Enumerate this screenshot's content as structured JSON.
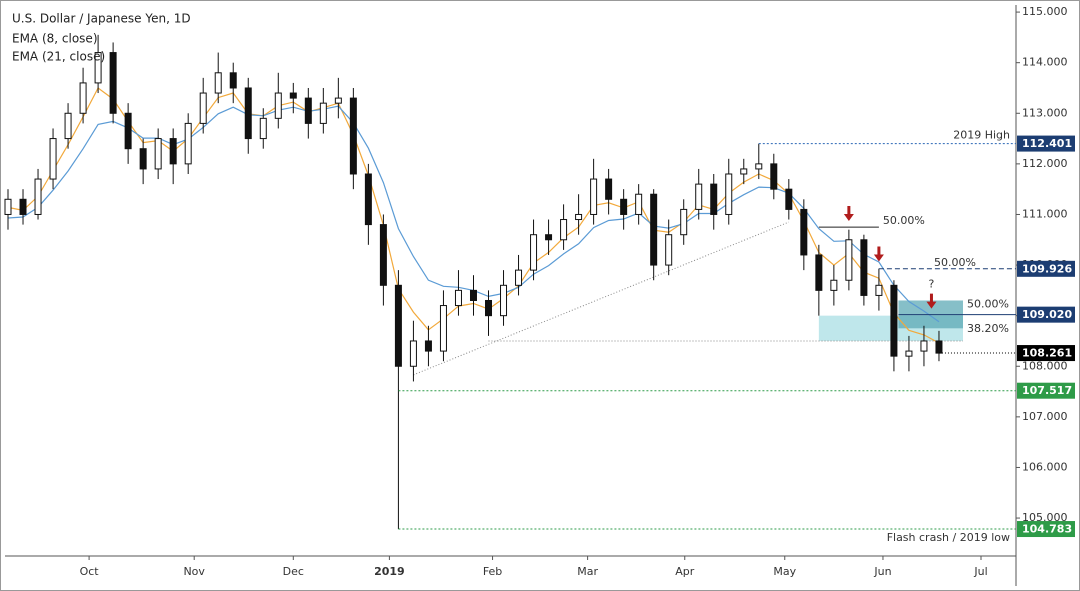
{
  "chart_data": {
    "type": "candlestick",
    "title": "U.S. Dollar / Japanese Yen, 1D",
    "indicators": [
      "EMA (8, close)",
      "EMA (21, close)"
    ],
    "xlim": [
      -0.2,
      67.13
    ],
    "ylim": [
      104.25,
      115.14
    ],
    "xticks": [
      {
        "value": 5.4,
        "label": "Oct"
      },
      {
        "value": 12.4,
        "label": "Nov"
      },
      {
        "value": 19,
        "label": "Dec"
      },
      {
        "value": 25.4,
        "label": "2019"
      },
      {
        "value": 32.27,
        "label": "Feb"
      },
      {
        "value": 38.6,
        "label": "Mar"
      },
      {
        "value": 45.07,
        "label": "Apr"
      },
      {
        "value": 51.73,
        "label": "May"
      },
      {
        "value": 58.27,
        "label": "Jun"
      },
      {
        "value": 64.8,
        "label": "Jul"
      }
    ],
    "yticks": [
      {
        "value": 105,
        "label": "105.000"
      },
      {
        "value": 106,
        "label": "106.000"
      },
      {
        "value": 107,
        "label": "107.000"
      },
      {
        "value": 108,
        "label": "108.000"
      },
      {
        "value": 109,
        "label": "109.000"
      },
      {
        "value": 110,
        "label": "110.000"
      },
      {
        "value": 111,
        "label": "111.000"
      },
      {
        "value": 112,
        "label": "112.000"
      },
      {
        "value": 113,
        "label": "113.000"
      },
      {
        "value": 114,
        "label": "114.000"
      },
      {
        "value": 115,
        "label": "115.000"
      }
    ],
    "open": [
      111.0,
      111.3,
      111.0,
      111.7,
      112.5,
      113.0,
      113.6,
      114.2,
      113.0,
      112.3,
      111.9,
      112.5,
      112.0,
      112.8,
      113.4,
      113.8,
      113.5,
      112.5,
      112.9,
      113.4,
      113.3,
      112.8,
      113.2,
      113.3,
      111.8,
      110.8,
      109.6,
      108.0,
      108.5,
      108.3,
      109.2,
      109.5,
      109.3,
      109.0,
      109.6,
      109.9,
      110.6,
      110.5,
      110.9,
      111.0,
      111.7,
      111.3,
      111.0,
      111.4,
      110.0,
      110.6,
      111.1,
      111.6,
      111.0,
      111.8,
      111.9,
      112.0,
      111.5,
      111.1,
      110.2,
      109.5,
      109.7,
      110.5,
      109.4,
      109.6,
      108.2,
      108.3,
      108.5
    ],
    "high": [
      111.5,
      111.5,
      111.9,
      112.7,
      113.2,
      113.9,
      114.55,
      114.4,
      113.2,
      112.5,
      112.7,
      112.7,
      113.0,
      113.7,
      114.2,
      114.0,
      113.7,
      113.1,
      113.8,
      113.6,
      113.5,
      113.5,
      113.7,
      113.5,
      112.0,
      111.0,
      109.9,
      108.9,
      108.8,
      109.5,
      109.9,
      109.8,
      109.5,
      109.9,
      110.2,
      110.9,
      110.9,
      111.2,
      111.4,
      112.1,
      111.9,
      111.5,
      111.6,
      111.5,
      110.9,
      111.3,
      111.9,
      111.8,
      112.1,
      112.1,
      112.4,
      112.2,
      111.7,
      111.3,
      110.4,
      110.0,
      110.7,
      110.6,
      109.93,
      109.7,
      108.6,
      108.8,
      108.7
    ],
    "low": [
      110.7,
      110.8,
      110.9,
      111.5,
      112.3,
      112.8,
      113.4,
      112.8,
      112.0,
      111.6,
      111.7,
      111.6,
      111.8,
      112.6,
      113.2,
      113.2,
      112.2,
      112.3,
      112.7,
      113.0,
      112.5,
      112.6,
      112.9,
      111.5,
      110.4,
      109.2,
      104.78,
      107.7,
      108.0,
      108.1,
      109.0,
      109.0,
      108.6,
      108.8,
      109.4,
      109.7,
      110.2,
      110.3,
      110.6,
      110.8,
      111.0,
      110.7,
      110.8,
      109.7,
      109.8,
      110.4,
      110.9,
      110.7,
      110.8,
      111.6,
      111.7,
      111.3,
      110.9,
      109.9,
      109.0,
      109.2,
      109.5,
      109.2,
      109.1,
      107.9,
      107.9,
      108.0,
      108.1
    ],
    "close": [
      111.3,
      111.0,
      111.7,
      112.5,
      113.0,
      113.6,
      114.2,
      113.0,
      112.3,
      111.9,
      112.5,
      112.0,
      112.8,
      113.4,
      113.8,
      113.5,
      112.5,
      112.9,
      113.4,
      113.3,
      112.8,
      113.2,
      113.3,
      111.8,
      110.8,
      109.6,
      108.0,
      108.5,
      108.3,
      109.2,
      109.5,
      109.3,
      109.0,
      109.6,
      109.9,
      110.6,
      110.5,
      110.9,
      111.0,
      111.7,
      111.3,
      111.0,
      111.4,
      110.0,
      110.6,
      111.1,
      111.6,
      111.0,
      111.8,
      111.9,
      112.0,
      111.5,
      111.1,
      110.2,
      109.5,
      109.7,
      110.5,
      109.4,
      109.6,
      108.2,
      108.3,
      108.5,
      108.26
    ],
    "series": [
      {
        "name": "EMA (8, close)",
        "color": "#f2a93b",
        "values": [
          111.14,
          111.08,
          111.36,
          111.87,
          112.38,
          112.93,
          113.5,
          113.28,
          112.84,
          112.42,
          112.46,
          112.25,
          112.5,
          112.91,
          113.31,
          113.4,
          112.99,
          112.95,
          113.15,
          113.22,
          113.03,
          113.11,
          113.2,
          112.57,
          111.77,
          110.79,
          109.53,
          109.07,
          108.72,
          108.94,
          109.19,
          109.24,
          109.13,
          109.34,
          109.59,
          110.04,
          110.25,
          110.54,
          110.75,
          111.18,
          111.23,
          111.13,
          111.25,
          110.69,
          110.65,
          110.85,
          111.19,
          111.1,
          111.42,
          111.64,
          111.8,
          111.67,
          111.41,
          110.87,
          110.25,
          110.0,
          110.23,
          109.86,
          109.74,
          109.05,
          108.71,
          108.62,
          108.46
        ]
      },
      {
        "name": "EMA (21, close)",
        "color": "#5b9bd5",
        "values": [
          110.93,
          110.95,
          111.14,
          111.48,
          111.86,
          112.3,
          112.78,
          112.84,
          112.71,
          112.51,
          112.51,
          112.38,
          112.49,
          112.72,
          112.99,
          113.12,
          112.97,
          112.95,
          113.06,
          113.12,
          113.04,
          113.08,
          113.14,
          112.81,
          112.31,
          111.63,
          110.72,
          110.17,
          109.7,
          109.58,
          109.56,
          109.5,
          109.38,
          109.44,
          109.56,
          109.82,
          109.99,
          110.22,
          110.42,
          110.74,
          110.88,
          110.91,
          111.03,
          110.77,
          110.73,
          110.82,
          111.02,
          111.02,
          111.22,
          111.39,
          111.54,
          111.53,
          111.42,
          111.12,
          110.72,
          110.47,
          110.48,
          110.21,
          110.06,
          109.6,
          109.28,
          109.09,
          108.88
        ]
      }
    ],
    "up_color": "#ffffff",
    "down_color": "#111111",
    "levels": [
      {
        "value": 112.401,
        "label": "112.401",
        "from": 50,
        "color": "#1c3d72",
        "line": "#2a66b5",
        "dash": "2,2",
        "note": "2019 High"
      },
      {
        "value": 109.926,
        "label": "109.926",
        "from": 58,
        "color": "#1c3d72",
        "line": "#1c3d72",
        "dash": "5,3"
      },
      {
        "value": 109.02,
        "label": "109.020",
        "from": 59.3,
        "color": "#1c3d72",
        "line": "#1c3d72",
        "dash": "1,0"
      },
      {
        "value": 108.261,
        "label": "108.261",
        "from": 62,
        "color": "#000000",
        "line": "#000000",
        "dash": "1,2"
      },
      {
        "value": 107.517,
        "label": "107.517",
        "from": 26,
        "color": "#2e9b48",
        "line": "#2e9b48",
        "dash": "2,2"
      },
      {
        "value": 104.783,
        "label": "104.783",
        "from": 26,
        "color": "#2e9b48",
        "line": "#2e9b48",
        "dash": "2,2",
        "note": "Flash crash / 2019 low"
      }
    ],
    "zones": [
      {
        "from": 54,
        "to": 63.6,
        "top": 109.0,
        "bottom": 108.5,
        "color": "#a9dfe4"
      },
      {
        "from": 59.3,
        "to": 63.6,
        "top": 109.3,
        "bottom": 108.75,
        "color": "#5eaab5"
      }
    ],
    "fibs": [
      {
        "label": "50.00%",
        "value": 110.75,
        "from": 54,
        "to": 58,
        "color": "#222222"
      },
      {
        "label": "50.00%",
        "value": 109.926,
        "from": 61.4,
        "to": 61.4,
        "color": "#777777"
      },
      {
        "label": "50.00%",
        "value": 109.1,
        "from": 63.6,
        "to": 63.6,
        "color": "#222222"
      },
      {
        "label": "38.20%",
        "value": 108.62,
        "from": 63.6,
        "to": 63.6,
        "color": "#999999"
      }
    ],
    "lines": [
      {
        "from": [
          27,
          107.83
        ],
        "to": [
          52,
          110.85
        ]
      },
      {
        "from": [
          32,
          108.5
        ],
        "to": [
          63.6,
          108.5
        ]
      }
    ],
    "arrows": [
      {
        "at": [
          56,
          110.85
        ]
      },
      {
        "at": [
          58,
          110.05
        ]
      },
      {
        "at": [
          61.5,
          109.12
        ],
        "label": "?"
      }
    ],
    "arrow_color": "#b01c1c"
  }
}
